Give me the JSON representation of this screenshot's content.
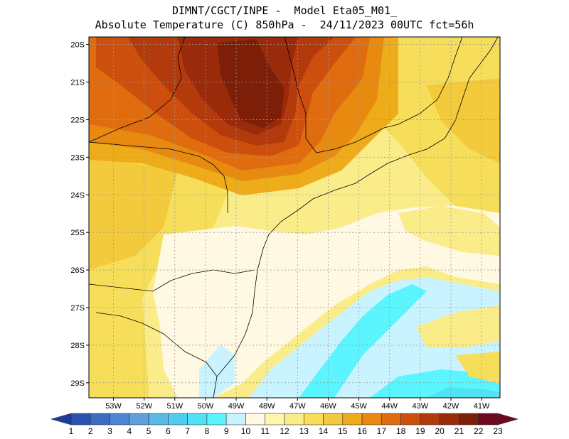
{
  "title": {
    "line1": "DIMNT/CGCT/INPE -  Model Eta05_M01_",
    "line2": "Absolute Temperature (C) 850hPa -  24/11/2023 00UTC fct=56h"
  },
  "map": {
    "lat_labels": [
      "20S",
      "21S",
      "22S",
      "23S",
      "24S",
      "25S",
      "26S",
      "27S",
      "28S",
      "29S"
    ],
    "lon_labels": [
      "53W",
      "52W",
      "51W",
      "50W",
      "49W",
      "48W",
      "47W",
      "46W",
      "45W",
      "44W",
      "43W",
      "42W",
      "41W"
    ],
    "lon_range": [
      -53.8,
      -40.4
    ],
    "lat_range": [
      -29.4,
      -19.8
    ],
    "gridlines": "dotted"
  },
  "colorbar": {
    "labels": [
      "1",
      "2",
      "3",
      "4",
      "5",
      "6",
      "7",
      "8",
      "9",
      "10",
      "11",
      "12",
      "13",
      "14",
      "15",
      "16",
      "17",
      "18",
      "19",
      "20",
      "21",
      "22",
      "23"
    ],
    "colors": [
      "#1e3d99",
      "#2a52b0",
      "#3a6cc2",
      "#4d86d1",
      "#5fa0dc",
      "#58b8e6",
      "#50cdee",
      "#4fe3f5",
      "#5af5ff",
      "#c9f4ff",
      "#fff8e2",
      "#fff4b0",
      "#fbec8a",
      "#f7de5a",
      "#f3ca3b",
      "#eeab1a",
      "#e88a10",
      "#e06c10",
      "#cc4f0e",
      "#b23a0c",
      "#992a0a",
      "#7d1f08",
      "#6b0a1f"
    ]
  }
}
